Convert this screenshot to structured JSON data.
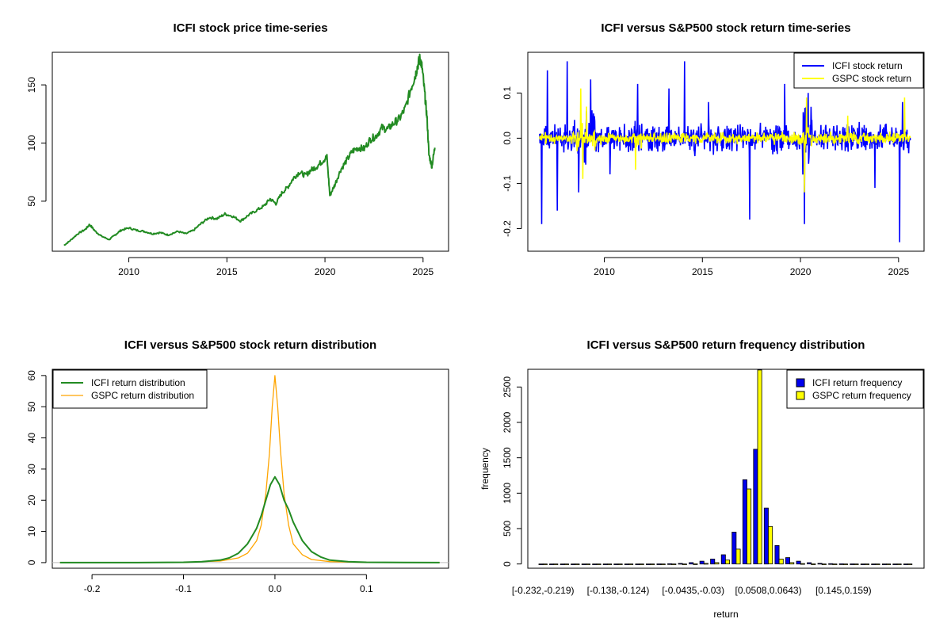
{
  "chart_data": [
    {
      "id": "price",
      "type": "line",
      "title": "ICFI stock price time-series",
      "xlabel": "",
      "ylabel": "",
      "xlim": [
        2006.1,
        2026.3
      ],
      "ylim": [
        7,
        178
      ],
      "x_ticks": [
        2010,
        2015,
        2020,
        2025
      ],
      "x_tick_labels": [
        "2010",
        "2015",
        "2020",
        "2025"
      ],
      "y_ticks": [
        50,
        100,
        150
      ],
      "y_tick_labels": [
        "50",
        "100",
        "150"
      ],
      "series": [
        {
          "color": "#228b22",
          "x": [
            2006.7,
            2007.0,
            2007.4,
            2007.8,
            2008.0,
            2008.3,
            2008.6,
            2009.0,
            2009.3,
            2009.6,
            2010.0,
            2010.4,
            2010.8,
            2011.2,
            2011.6,
            2012.0,
            2012.5,
            2012.9,
            2013.3,
            2013.7,
            2014.1,
            2014.5,
            2014.9,
            2015.3,
            2015.7,
            2016.1,
            2016.5,
            2016.9,
            2017.2,
            2017.5,
            2017.8,
            2018.1,
            2018.4,
            2018.7,
            2019.0,
            2019.3,
            2019.6,
            2019.9,
            2020.1,
            2020.25,
            2020.5,
            2020.8,
            2021.1,
            2021.4,
            2021.7,
            2022.0,
            2022.3,
            2022.6,
            2022.9,
            2023.2,
            2023.5,
            2023.8,
            2024.1,
            2024.4,
            2024.6,
            2024.75,
            2024.85,
            2024.95,
            2025.1,
            2025.2,
            2025.3,
            2025.45,
            2025.6
          ],
          "y": [
            12,
            16,
            22,
            26,
            30,
            24,
            20,
            17,
            21,
            25,
            27,
            25,
            24,
            22,
            23,
            21,
            24,
            22,
            25,
            31,
            36,
            35,
            39,
            37,
            33,
            38,
            42,
            46,
            52,
            48,
            57,
            62,
            70,
            75,
            72,
            77,
            80,
            85,
            88,
            55,
            64,
            77,
            85,
            93,
            96,
            95,
            103,
            106,
            113,
            112,
            117,
            121,
            130,
            148,
            158,
            168,
            173,
            165,
            140,
            122,
            90,
            80,
            96
          ]
        }
      ]
    },
    {
      "id": "returns",
      "type": "line",
      "title": "ICFI versus S&P500 stock return time-series",
      "xlabel": "",
      "ylabel": "",
      "xlim": [
        2006.1,
        2026.3
      ],
      "ylim": [
        -0.25,
        0.19
      ],
      "x_ticks": [
        2010,
        2015,
        2020,
        2025
      ],
      "x_tick_labels": [
        "2010",
        "2015",
        "2020",
        "2025"
      ],
      "y_ticks": [
        -0.2,
        -0.1,
        0.0,
        0.1
      ],
      "y_tick_labels": [
        "-0.2",
        "-0.1",
        "0.0",
        "0.1"
      ],
      "legend_position": "top-right",
      "series": [
        {
          "name": "ICFI stock return",
          "color": "#0000ff",
          "x_range": [
            2006.7,
            2025.6
          ],
          "band_sd": 0.02,
          "spikes": [
            [
              2006.8,
              -0.19
            ],
            [
              2007.1,
              0.15
            ],
            [
              2007.6,
              -0.16
            ],
            [
              2008.1,
              0.17
            ],
            [
              2008.7,
              -0.12
            ],
            [
              2009.3,
              0.13
            ],
            [
              2010.3,
              -0.08
            ],
            [
              2011.7,
              0.12
            ],
            [
              2013.3,
              0.11
            ],
            [
              2014.1,
              0.17
            ],
            [
              2015.3,
              0.08
            ],
            [
              2017.4,
              -0.18
            ],
            [
              2019.2,
              0.12
            ],
            [
              2020.2,
              -0.19
            ],
            [
              2020.4,
              0.1
            ],
            [
              2023.8,
              -0.11
            ],
            [
              2025.05,
              -0.23
            ],
            [
              2025.2,
              0.08
            ]
          ]
        },
        {
          "name": "GSPC stock return",
          "color": "#ffff00",
          "x_range": [
            2006.7,
            2025.6
          ],
          "band_sd": 0.008,
          "spikes": [
            [
              2008.8,
              0.11
            ],
            [
              2008.9,
              -0.09
            ],
            [
              2009.1,
              0.07
            ],
            [
              2011.6,
              -0.07
            ],
            [
              2020.2,
              -0.12
            ],
            [
              2020.3,
              0.09
            ],
            [
              2022.4,
              0.05
            ],
            [
              2025.3,
              0.09
            ]
          ]
        }
      ]
    },
    {
      "id": "density",
      "type": "line",
      "title": "ICFI versus S&P500 stock return distribution",
      "xlabel": "",
      "ylabel": "",
      "xlim": [
        -0.2434,
        0.1898
      ],
      "ylim": [
        -1.8,
        62
      ],
      "x_ticks": [
        -0.2,
        -0.1,
        0.0,
        0.1
      ],
      "x_tick_labels": [
        "-0.2",
        "-0.1",
        "0.0",
        "0.1"
      ],
      "y_ticks": [
        0,
        10,
        20,
        30,
        40,
        50,
        60
      ],
      "y_tick_labels": [
        "0",
        "10",
        "20",
        "30",
        "40",
        "50",
        "60"
      ],
      "legend_position": "top-left",
      "series": [
        {
          "name": "ICFI return distribution",
          "color": "#228b22",
          "x": [
            -0.235,
            -0.15,
            -0.1,
            -0.08,
            -0.06,
            -0.05,
            -0.04,
            -0.03,
            -0.025,
            -0.02,
            -0.015,
            -0.01,
            -0.005,
            0.0,
            0.005,
            0.01,
            0.015,
            0.02,
            0.025,
            0.03,
            0.04,
            0.05,
            0.06,
            0.08,
            0.1,
            0.18
          ],
          "y": [
            0,
            0,
            0.1,
            0.3,
            0.8,
            1.5,
            3,
            6,
            8.5,
            11,
            15,
            20,
            25,
            27.5,
            25,
            20,
            17,
            13,
            10,
            7,
            3.5,
            1.8,
            0.8,
            0.3,
            0.1,
            0
          ]
        },
        {
          "name": "GSPC return distribution",
          "color": "#ffa500",
          "x": [
            -0.235,
            -0.1,
            -0.09,
            -0.06,
            -0.04,
            -0.03,
            -0.02,
            -0.015,
            -0.01,
            -0.006,
            -0.003,
            0.0,
            0.003,
            0.006,
            0.01,
            0.015,
            0.02,
            0.03,
            0.04,
            0.06,
            0.09,
            0.18
          ],
          "y": [
            0,
            0,
            0.2,
            0.5,
            1.5,
            3,
            7,
            12,
            22,
            35,
            50,
            60,
            50,
            36,
            22,
            12,
            6,
            2.5,
            1,
            0.3,
            0.1,
            0
          ]
        }
      ]
    },
    {
      "id": "freq",
      "type": "bar",
      "title": "ICFI versus S&P500 return frequency distribution",
      "xlabel": "return",
      "ylabel": "frequency",
      "ylim": [
        -60,
        2750
      ],
      "y_ticks": [
        0,
        500,
        1000,
        1500,
        2000,
        2500
      ],
      "y_tick_labels": [
        "0",
        "500",
        "1000",
        "1500",
        "2000",
        "2500"
      ],
      "x_tick_labels": [
        {
          "index": 0,
          "label": "[-0.232,-0.219)"
        },
        {
          "index": 7,
          "label": "[-0.138,-0.124)"
        },
        {
          "index": 14,
          "label": "[-0.0435,-0.03)"
        },
        {
          "index": 21,
          "label": "[0.0508,0.0643)"
        },
        {
          "index": 28,
          "label": "[0.145,0.159)"
        }
      ],
      "categories": [
        "b1",
        "b2",
        "b3",
        "b4",
        "b5",
        "b6",
        "b7",
        "b8",
        "b9",
        "b10",
        "b11",
        "b12",
        "b13",
        "b14",
        "b15",
        "b16",
        "b17",
        "b18",
        "b19",
        "b20",
        "b21",
        "b22",
        "b23",
        "b24",
        "b25",
        "b26",
        "b27",
        "b28",
        "b29",
        "b30",
        "b31",
        "b32",
        "b33",
        "b34",
        "b35"
      ],
      "legend_position": "top-right",
      "series": [
        {
          "name": "ICFI return frequency",
          "color": "#0000ee",
          "values": [
            1,
            0,
            0,
            0,
            0,
            0,
            0,
            0,
            0,
            0,
            1,
            2,
            4,
            8,
            20,
            40,
            70,
            130,
            450,
            1190,
            1620,
            790,
            260,
            90,
            40,
            18,
            9,
            5,
            3,
            2,
            1,
            1,
            0,
            0,
            1
          ]
        },
        {
          "name": "GSPC return frequency",
          "color": "#ffff00",
          "values": [
            0,
            0,
            0,
            0,
            0,
            0,
            0,
            0,
            0,
            0,
            0,
            0,
            0,
            1,
            3,
            8,
            20,
            55,
            210,
            1060,
            2740,
            530,
            70,
            20,
            6,
            2,
            1,
            0,
            0,
            0,
            0,
            0,
            0,
            0,
            0
          ]
        }
      ]
    }
  ]
}
